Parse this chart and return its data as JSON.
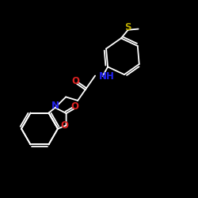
{
  "background_color": "#000000",
  "bond_color": "#ffffff",
  "atom_colors": {
    "O": "#dd2222",
    "N": "#2222ee",
    "S": "#bbaa00",
    "C": "#ffffff"
  },
  "font_size_atom": 8.5,
  "figsize": [
    2.5,
    2.5
  ],
  "dpi": 100,
  "lw": 1.3
}
